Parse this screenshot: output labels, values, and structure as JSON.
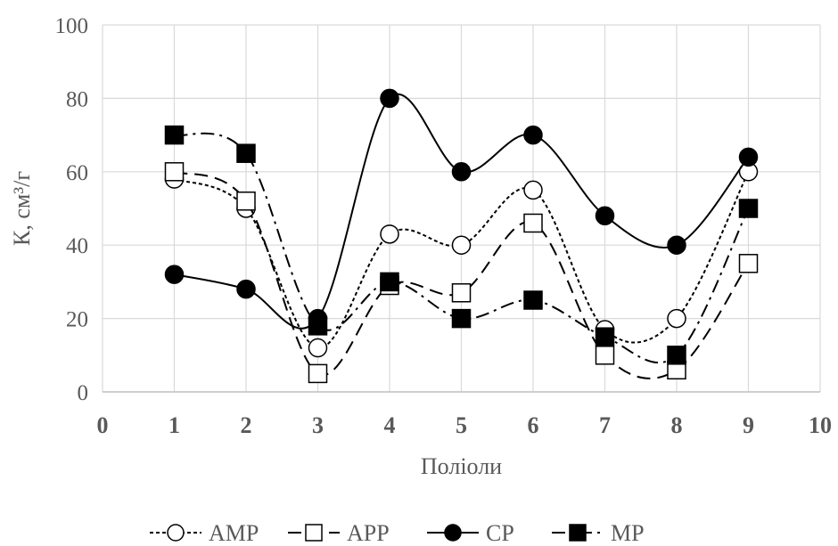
{
  "chart_data": {
    "type": "line",
    "xlabel": "Поліоли",
    "ylabel": "К, см³/г",
    "xlim": [
      0,
      10
    ],
    "ylim": [
      0,
      100
    ],
    "x_ticks": [
      0,
      1,
      2,
      3,
      4,
      5,
      6,
      7,
      8,
      9,
      10
    ],
    "y_ticks": [
      0,
      20,
      40,
      60,
      80,
      100
    ],
    "grid": true,
    "legend_position": "bottom",
    "x": [
      1,
      2,
      3,
      4,
      5,
      6,
      7,
      8,
      9
    ],
    "series": [
      {
        "name": "AMP",
        "values": [
          58,
          50,
          12,
          43,
          40,
          55,
          17,
          20,
          60
        ],
        "marker": "open-circle",
        "line_style": "dotted",
        "color": "#000000"
      },
      {
        "name": "APP",
        "values": [
          60,
          52,
          5,
          29,
          27,
          46,
          10,
          6,
          35
        ],
        "marker": "open-square",
        "line_style": "dashed",
        "color": "#000000"
      },
      {
        "name": "CP",
        "values": [
          32,
          28,
          20,
          80,
          60,
          70,
          48,
          40,
          64
        ],
        "marker": "filled-circle",
        "line_style": "solid",
        "color": "#000000"
      },
      {
        "name": "MP",
        "values": [
          70,
          65,
          18,
          30,
          20,
          25,
          15,
          10,
          50
        ],
        "marker": "filled-square",
        "line_style": "dash-dot",
        "color": "#000000"
      }
    ]
  }
}
